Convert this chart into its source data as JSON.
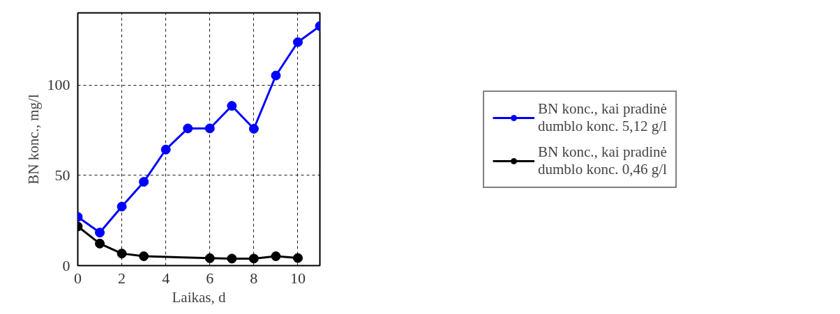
{
  "chart_data": {
    "type": "line",
    "xlabel": "Laikas, d",
    "ylabel": "BN konc., mg/l",
    "xlim": [
      0,
      11
    ],
    "ylim": [
      0,
      140
    ],
    "xticks": [
      0,
      2,
      4,
      6,
      8,
      10
    ],
    "yticks": [
      0,
      50,
      100
    ],
    "grid": true,
    "legend": "right",
    "marker": "circle",
    "line_style": "solid",
    "series": [
      {
        "name": "BN konc., kai pradinė\ndumblo konc. 5,12 g/l",
        "color": "#0000ff",
        "x": [
          0,
          1,
          2,
          3,
          4,
          5,
          6,
          7,
          8,
          9,
          10,
          11
        ],
        "values": [
          27,
          18.3,
          32.7,
          46.4,
          64.3,
          76,
          76,
          88.5,
          75.8,
          105.3,
          123.8,
          132.7
        ]
      },
      {
        "name": "BN konc., kai pradinė\ndumblo konc. 0,46 g/l",
        "color": "#000000",
        "x": [
          0,
          1,
          2,
          3,
          6,
          7,
          8,
          9,
          10
        ],
        "values": [
          21.7,
          12.2,
          6.7,
          5.2,
          4.1,
          3.9,
          3.9,
          5.2,
          4.2
        ]
      }
    ]
  }
}
